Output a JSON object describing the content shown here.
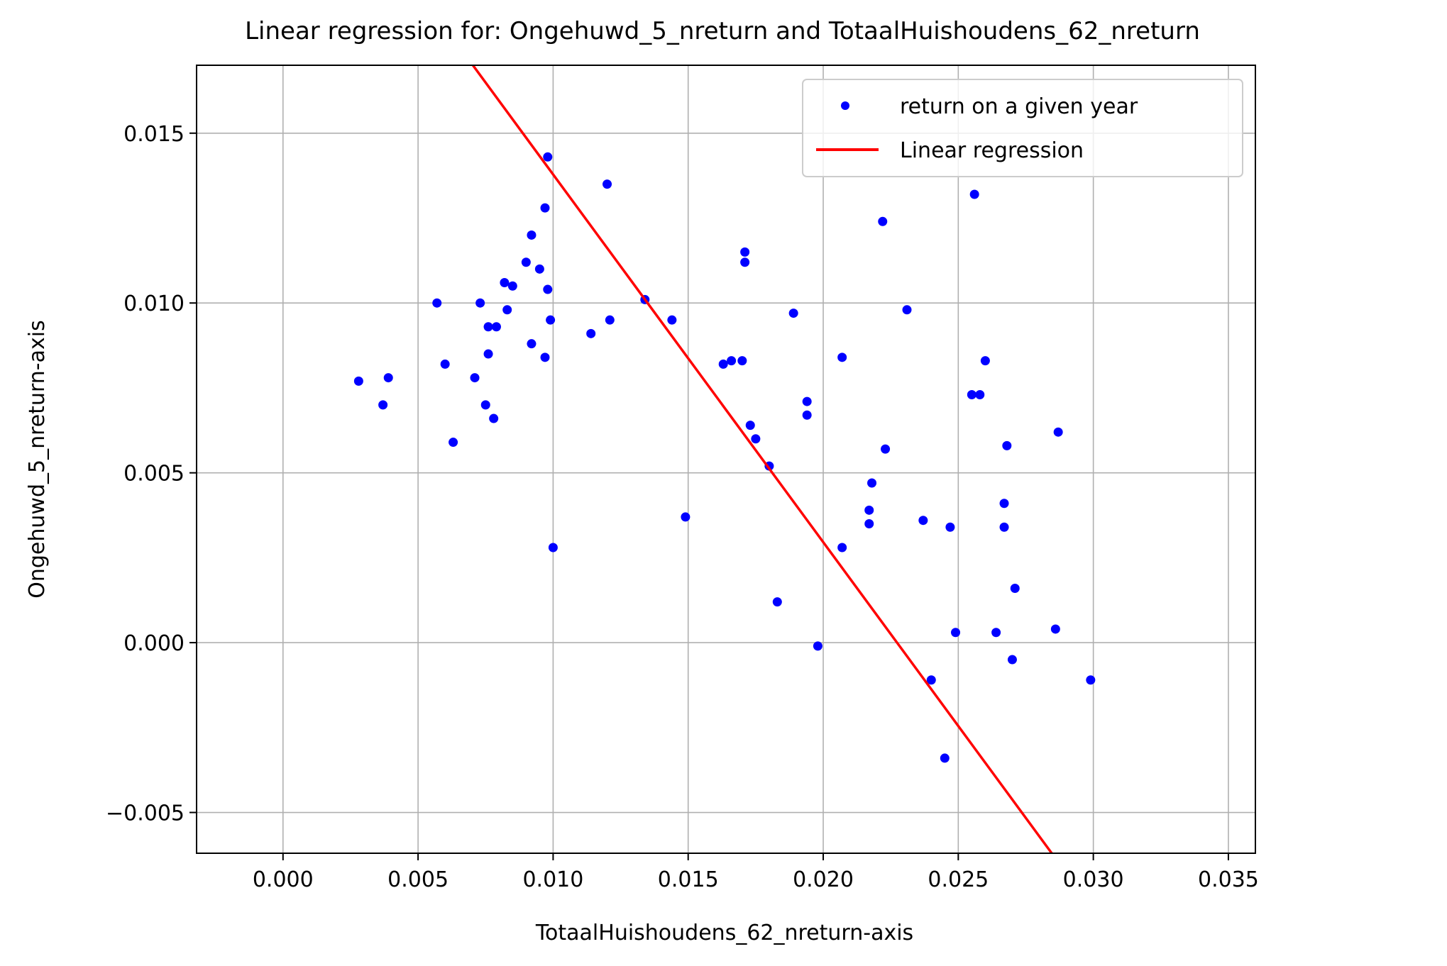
{
  "chart_data": {
    "type": "scatter",
    "title": "Linear regression for: Ongehuwd_5_nreturn and TotaalHuishoudens_62_nreturn",
    "xlabel": "TotaalHuishoudens_62_nreturn-axis",
    "ylabel": "Ongehuwd_5_nreturn-axis",
    "xlim": [
      -0.0032,
      0.036
    ],
    "ylim": [
      -0.0062,
      0.017
    ],
    "xticks": [
      0.0,
      0.005,
      0.01,
      0.015,
      0.02,
      0.025,
      0.03,
      0.035
    ],
    "xtick_labels": [
      "0.000",
      "0.005",
      "0.010",
      "0.015",
      "0.020",
      "0.025",
      "0.030",
      "0.035"
    ],
    "yticks": [
      -0.005,
      0.0,
      0.005,
      0.01,
      0.015
    ],
    "ytick_labels": [
      "−0.005",
      "0.000",
      "0.005",
      "0.010",
      "0.015"
    ],
    "grid": true,
    "legend_position": "top-right",
    "colors": {
      "points": "#0000ff",
      "line": "#ff0000",
      "grid": "#b0b0b0"
    },
    "series": [
      {
        "name": "return on a given year",
        "kind": "scatter",
        "points": [
          [
            0.0028,
            0.0077
          ],
          [
            0.0037,
            0.007
          ],
          [
            0.0039,
            0.0078
          ],
          [
            0.0057,
            0.01
          ],
          [
            0.006,
            0.0082
          ],
          [
            0.0063,
            0.0059
          ],
          [
            0.0071,
            0.0078
          ],
          [
            0.0073,
            0.01
          ],
          [
            0.0075,
            0.007
          ],
          [
            0.0076,
            0.0093
          ],
          [
            0.0076,
            0.0085
          ],
          [
            0.0078,
            0.0066
          ],
          [
            0.0079,
            0.0093
          ],
          [
            0.0082,
            0.0106
          ],
          [
            0.0083,
            0.0098
          ],
          [
            0.0085,
            0.0105
          ],
          [
            0.009,
            0.0112
          ],
          [
            0.0092,
            0.012
          ],
          [
            0.0092,
            0.0088
          ],
          [
            0.0095,
            0.011
          ],
          [
            0.0097,
            0.0128
          ],
          [
            0.0097,
            0.0084
          ],
          [
            0.0098,
            0.0143
          ],
          [
            0.0098,
            0.0104
          ],
          [
            0.0099,
            0.0095
          ],
          [
            0.01,
            0.0028
          ],
          [
            0.0114,
            0.0091
          ],
          [
            0.012,
            0.0135
          ],
          [
            0.0121,
            0.0095
          ],
          [
            0.0134,
            0.0101
          ],
          [
            0.0144,
            0.0095
          ],
          [
            0.0149,
            0.0037
          ],
          [
            0.0163,
            0.0082
          ],
          [
            0.0166,
            0.0083
          ],
          [
            0.017,
            0.0083
          ],
          [
            0.0171,
            0.0115
          ],
          [
            0.0171,
            0.0112
          ],
          [
            0.0173,
            0.0064
          ],
          [
            0.0175,
            0.006
          ],
          [
            0.018,
            0.0052
          ],
          [
            0.0183,
            0.0012
          ],
          [
            0.0189,
            0.0097
          ],
          [
            0.0194,
            0.0071
          ],
          [
            0.0194,
            0.0067
          ],
          [
            0.0198,
            -0.0001
          ],
          [
            0.0207,
            0.0084
          ],
          [
            0.0207,
            0.0028
          ],
          [
            0.0217,
            0.0039
          ],
          [
            0.0217,
            0.0035
          ],
          [
            0.0218,
            0.0047
          ],
          [
            0.0222,
            0.0124
          ],
          [
            0.0223,
            0.0057
          ],
          [
            0.0231,
            0.0098
          ],
          [
            0.0237,
            0.0036
          ],
          [
            0.024,
            -0.0011
          ],
          [
            0.0245,
            -0.0034
          ],
          [
            0.0247,
            0.0034
          ],
          [
            0.0249,
            0.0003
          ],
          [
            0.0255,
            0.0073
          ],
          [
            0.0256,
            0.0132
          ],
          [
            0.0258,
            0.0073
          ],
          [
            0.026,
            0.0083
          ],
          [
            0.0264,
            0.0003
          ],
          [
            0.0267,
            0.0041
          ],
          [
            0.0267,
            0.0034
          ],
          [
            0.0268,
            0.0058
          ],
          [
            0.027,
            -0.0005
          ],
          [
            0.0271,
            0.0016
          ],
          [
            0.0286,
            0.0004
          ],
          [
            0.0287,
            0.0062
          ],
          [
            0.0299,
            -0.0011
          ]
        ]
      },
      {
        "name": "Linear regression",
        "kind": "line",
        "points": [
          [
            0.00703,
            0.017
          ],
          [
            0.02846,
            -0.0062
          ]
        ]
      }
    ]
  }
}
